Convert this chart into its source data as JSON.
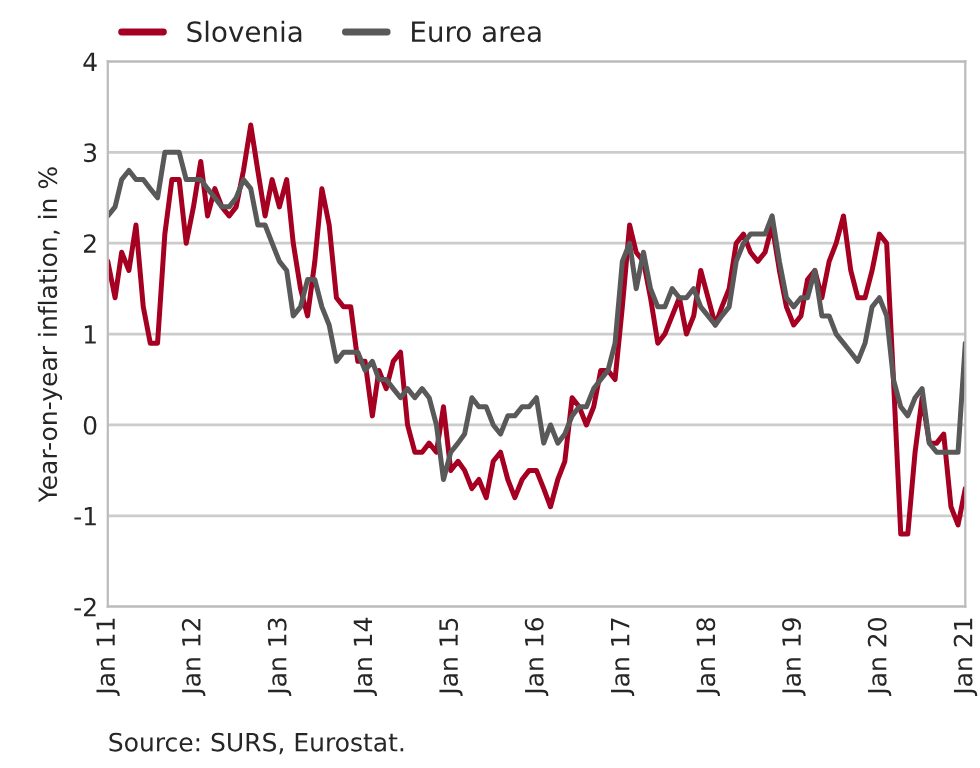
{
  "chart_data": {
    "type": "line",
    "ylabel": "Year-on-year inflation, in %",
    "x": [
      "2011-01",
      "2011-02",
      "2011-03",
      "2011-04",
      "2011-05",
      "2011-06",
      "2011-07",
      "2011-08",
      "2011-09",
      "2011-10",
      "2011-11",
      "2011-12",
      "2012-01",
      "2012-02",
      "2012-03",
      "2012-04",
      "2012-05",
      "2012-06",
      "2012-07",
      "2012-08",
      "2012-09",
      "2012-10",
      "2012-11",
      "2012-12",
      "2013-01",
      "2013-02",
      "2013-03",
      "2013-04",
      "2013-05",
      "2013-06",
      "2013-07",
      "2013-08",
      "2013-09",
      "2013-10",
      "2013-11",
      "2013-12",
      "2014-01",
      "2014-02",
      "2014-03",
      "2014-04",
      "2014-05",
      "2014-06",
      "2014-07",
      "2014-08",
      "2014-09",
      "2014-10",
      "2014-11",
      "2014-12",
      "2015-01",
      "2015-02",
      "2015-03",
      "2015-04",
      "2015-05",
      "2015-06",
      "2015-07",
      "2015-08",
      "2015-09",
      "2015-10",
      "2015-11",
      "2015-12",
      "2016-01",
      "2016-02",
      "2016-03",
      "2016-04",
      "2016-05",
      "2016-06",
      "2016-07",
      "2016-08",
      "2016-09",
      "2016-10",
      "2016-11",
      "2016-12",
      "2017-01",
      "2017-02",
      "2017-03",
      "2017-04",
      "2017-05",
      "2017-06",
      "2017-07",
      "2017-08",
      "2017-09",
      "2017-10",
      "2017-11",
      "2017-12",
      "2018-01",
      "2018-02",
      "2018-03",
      "2018-04",
      "2018-05",
      "2018-06",
      "2018-07",
      "2018-08",
      "2018-09",
      "2018-10",
      "2018-11",
      "2018-12",
      "2019-01",
      "2019-02",
      "2019-03",
      "2019-04",
      "2019-05",
      "2019-06",
      "2019-07",
      "2019-08",
      "2019-09",
      "2019-10",
      "2019-11",
      "2019-12",
      "2020-01",
      "2020-02",
      "2020-03",
      "2020-04",
      "2020-05",
      "2020-06",
      "2020-07",
      "2020-08",
      "2020-09",
      "2020-10",
      "2020-11",
      "2020-12",
      "2021-01"
    ],
    "xlim": [
      "2011-01",
      "2021-01"
    ],
    "xticks": [
      {
        "value": "2011-01",
        "label": "Jan 11"
      },
      {
        "value": "2012-01",
        "label": "Jan 12"
      },
      {
        "value": "2013-01",
        "label": "Jan 13"
      },
      {
        "value": "2014-01",
        "label": "Jan 14"
      },
      {
        "value": "2015-01",
        "label": "Jan 15"
      },
      {
        "value": "2016-01",
        "label": "Jan 16"
      },
      {
        "value": "2017-01",
        "label": "Jan 17"
      },
      {
        "value": "2018-01",
        "label": "Jan 18"
      },
      {
        "value": "2019-01",
        "label": "Jan 19"
      },
      {
        "value": "2020-01",
        "label": "Jan 20"
      },
      {
        "value": "2021-01",
        "label": "Jan 21"
      }
    ],
    "ylim": [
      -2,
      4
    ],
    "yticks": [
      -2,
      -1,
      0,
      1,
      2,
      3,
      4
    ],
    "grid": "y",
    "legend": "top left",
    "line_style": "solid",
    "marker": "none",
    "series": [
      {
        "name": "Slovenia",
        "color": "#a50021",
        "values": [
          1.8,
          1.4,
          1.9,
          1.7,
          2.2,
          1.3,
          0.9,
          0.9,
          2.1,
          2.7,
          2.7,
          2.0,
          2.4,
          2.9,
          2.3,
          2.6,
          2.4,
          2.3,
          2.4,
          2.8,
          3.3,
          2.8,
          2.3,
          2.7,
          2.4,
          2.7,
          2.0,
          1.5,
          1.2,
          1.8,
          2.6,
          2.2,
          1.4,
          1.3,
          1.3,
          0.7,
          0.7,
          0.1,
          0.6,
          0.4,
          0.7,
          0.8,
          0.0,
          -0.3,
          -0.3,
          -0.2,
          -0.3,
          0.2,
          -0.5,
          -0.4,
          -0.5,
          -0.7,
          -0.6,
          -0.8,
          -0.4,
          -0.3,
          -0.6,
          -0.8,
          -0.6,
          -0.5,
          -0.5,
          -0.7,
          -0.9,
          -0.6,
          -0.4,
          0.3,
          0.2,
          0.0,
          0.2,
          0.6,
          0.6,
          0.5,
          1.3,
          2.2,
          1.9,
          1.8,
          1.4,
          0.9,
          1.0,
          1.2,
          1.4,
          1.0,
          1.2,
          1.7,
          1.4,
          1.1,
          1.3,
          1.5,
          2.0,
          2.1,
          1.9,
          1.8,
          1.9,
          2.2,
          1.7,
          1.3,
          1.1,
          1.2,
          1.6,
          1.7,
          1.4,
          1.8,
          2.0,
          2.3,
          1.7,
          1.4,
          1.4,
          1.7,
          2.1,
          2.0,
          0.5,
          -1.2,
          -1.2,
          -0.3,
          0.3,
          -0.2,
          -0.2,
          -0.1,
          -0.9,
          -1.1,
          -0.7
        ]
      },
      {
        "name": "Euro area",
        "color": "#595959",
        "values": [
          2.3,
          2.4,
          2.7,
          2.8,
          2.7,
          2.7,
          2.6,
          2.5,
          3.0,
          3.0,
          3.0,
          2.7,
          2.7,
          2.7,
          2.6,
          2.5,
          2.4,
          2.4,
          2.5,
          2.7,
          2.6,
          2.2,
          2.2,
          2.0,
          1.8,
          1.7,
          1.2,
          1.3,
          1.6,
          1.6,
          1.3,
          1.1,
          0.7,
          0.8,
          0.8,
          0.8,
          0.6,
          0.7,
          0.5,
          0.5,
          0.4,
          0.3,
          0.4,
          0.3,
          0.4,
          0.3,
          0.0,
          -0.6,
          -0.3,
          -0.2,
          -0.1,
          0.3,
          0.2,
          0.2,
          0.0,
          -0.1,
          0.1,
          0.1,
          0.2,
          0.2,
          0.3,
          -0.2,
          0.0,
          -0.2,
          -0.1,
          0.1,
          0.2,
          0.2,
          0.4,
          0.5,
          0.6,
          0.9,
          1.8,
          2.0,
          1.5,
          1.9,
          1.5,
          1.3,
          1.3,
          1.5,
          1.4,
          1.4,
          1.5,
          1.3,
          1.2,
          1.1,
          1.2,
          1.3,
          1.8,
          2.0,
          2.1,
          2.1,
          2.1,
          2.3,
          1.8,
          1.4,
          1.3,
          1.4,
          1.4,
          1.7,
          1.2,
          1.2,
          1.0,
          0.9,
          0.8,
          0.7,
          0.9,
          1.3,
          1.4,
          1.2,
          0.5,
          0.2,
          0.1,
          0.3,
          0.4,
          -0.2,
          -0.3,
          -0.3,
          -0.3,
          -0.3,
          0.9
        ]
      }
    ],
    "annotations": [
      "Source: SURS, Eurostat."
    ]
  }
}
